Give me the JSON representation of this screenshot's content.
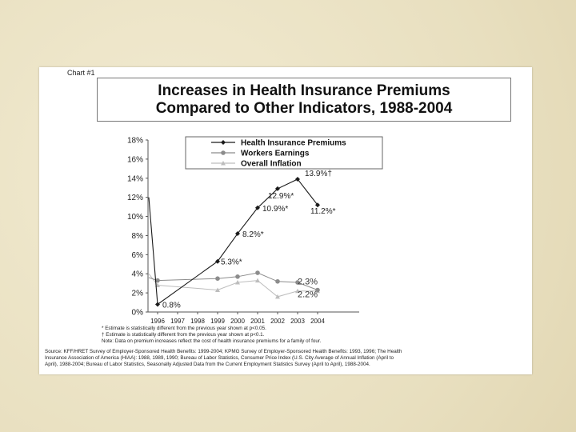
{
  "chart_label": "Chart #1",
  "title_line1": "Increases in Health Insurance Premiums",
  "title_line2": "Compared to Other Indicators, 1988-2004",
  "footnotes": {
    "star": "* Estimate is statistically different from the previous year shown at p<0.05.",
    "dagger": "† Estimate is statistically different from the previous year shown at p<0.1.",
    "note": "Note:  Data on premium increases reflect the cost of health insurance premiums for a family of four."
  },
  "source": {
    "line1": "Source:  KFF/HRET Survey of Employer-Sponsored Health Benefits: 1999-2004; KPMG Survey of Employer-Sponsored Health Benefits: 1993, 1996; The Health",
    "line2": "Insurance Association of America (HIAA): 1988, 1989, 1990; Bureau of Labor Statistics, Consumer Price Index (U.S. City Average of Annual Inflation (April to",
    "line3": "April), 1988-2004; Bureau of Labor Statistics, Seasonally Adjusted Data from the Current Employment Statistics Survey (April to April), 1988-2004."
  },
  "chart_data": {
    "type": "line",
    "categories": [
      "1988",
      "1996",
      "1997",
      "1998",
      "1999",
      "2000",
      "2001",
      "2002",
      "2003",
      "2004"
    ],
    "x_tick_labels": [
      "1996",
      "1997",
      "1998",
      "1999",
      "2000",
      "2001",
      "2002",
      "2003",
      "2004"
    ],
    "y_tick_labels": [
      "0%",
      "2%",
      "4%",
      "6%",
      "8%",
      "10%",
      "12%",
      "14%",
      "16%",
      "18%"
    ],
    "ylim": [
      0,
      18
    ],
    "legend_position": "top-center",
    "series": [
      {
        "name": "Health Insurance Premiums",
        "color": "#1a1a1a",
        "marker": "diamond",
        "values": [
          12.0,
          0.8,
          null,
          null,
          5.3,
          8.2,
          10.9,
          12.9,
          13.9,
          11.2
        ],
        "labels": [
          "",
          "0.8%",
          "",
          "",
          "5.3%*",
          "8.2%*",
          "10.9%*",
          "12.9%*",
          "13.9%†",
          "11.2%*"
        ]
      },
      {
        "name": "Workers Earnings",
        "color": "#8c8c8c",
        "marker": "circle",
        "values": [
          3.6,
          3.3,
          null,
          null,
          3.5,
          3.7,
          4.1,
          3.2,
          3.1,
          2.3
        ],
        "end_label": "2.3%"
      },
      {
        "name": "Overall Inflation",
        "color": "#bdbdbd",
        "marker": "triangle",
        "values": [
          4.0,
          2.8,
          null,
          null,
          2.3,
          3.1,
          3.3,
          1.6,
          2.2,
          2.2
        ],
        "end_label": "2.2%"
      }
    ]
  }
}
